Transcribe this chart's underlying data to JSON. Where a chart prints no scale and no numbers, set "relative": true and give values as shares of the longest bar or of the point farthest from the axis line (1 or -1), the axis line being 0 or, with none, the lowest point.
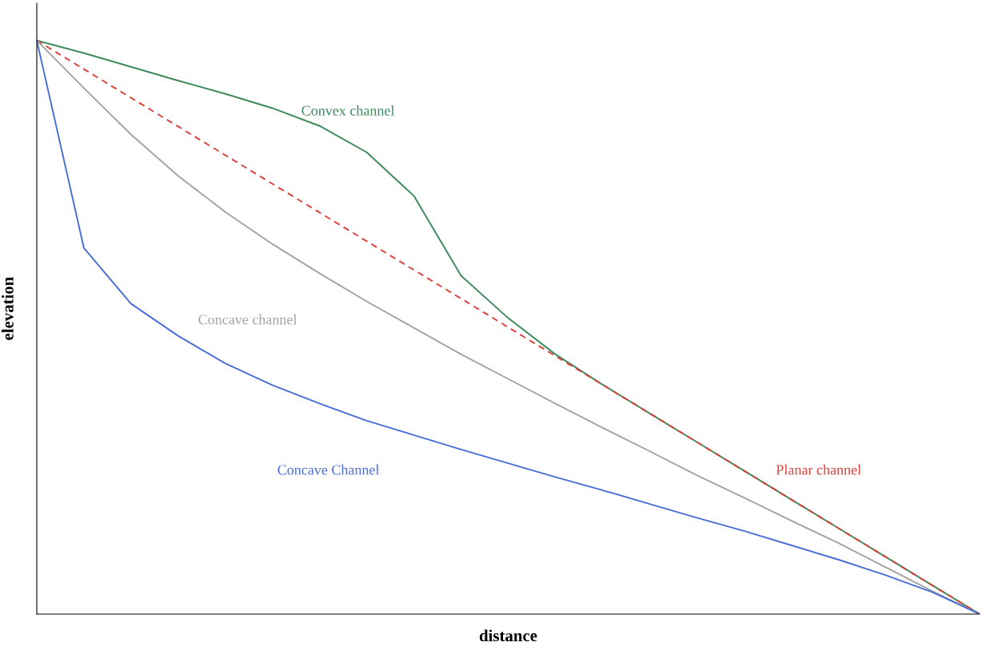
{
  "chart_data": {
    "type": "line",
    "relative": true,
    "xlabel": "distance",
    "ylabel": "elevation",
    "legend": false,
    "marker": "none",
    "categories": [
      null,
      null,
      null,
      null,
      null,
      null,
      null,
      null,
      null,
      null,
      null,
      null,
      null,
      null,
      null,
      null,
      null,
      null,
      null,
      null,
      null
    ],
    "series": [
      {
        "name": "Convex channel",
        "color": "#3f8a5c",
        "line_style": "solid",
        "values": [
          1.0,
          0.978,
          0.954,
          0.93,
          0.907,
          0.882,
          0.851,
          0.805,
          0.729,
          0.59,
          0.516,
          0.453,
          0.4,
          0.35,
          0.3,
          0.25,
          0.2,
          0.15,
          0.1,
          0.05,
          0.0
        ]
      },
      {
        "name": "Planar channel",
        "color": "#d9413a",
        "line_style": "dashed",
        "values": [
          1.0,
          0.95,
          0.9,
          0.85,
          0.8,
          0.75,
          0.7,
          0.65,
          0.6,
          0.55,
          0.5,
          0.45,
          0.4,
          0.35,
          0.3,
          0.25,
          0.2,
          0.15,
          0.1,
          0.05,
          0.0
        ]
      },
      {
        "name": "Concave channel",
        "color": "#a3a3a3",
        "line_style": "solid",
        "values": [
          1.0,
          0.917,
          0.836,
          0.764,
          0.701,
          0.645,
          0.594,
          0.545,
          0.499,
          0.453,
          0.41,
          0.367,
          0.325,
          0.284,
          0.242,
          0.203,
          0.163,
          0.124,
          0.082,
          0.04,
          0.0
        ]
      },
      {
        "name": "Concave Channel",
        "color": "#4a6ed8",
        "line_style": "solid",
        "values": [
          1.0,
          0.638,
          0.541,
          0.485,
          0.437,
          0.399,
          0.367,
          0.337,
          0.312,
          0.287,
          0.263,
          0.239,
          0.216,
          0.192,
          0.168,
          0.145,
          0.12,
          0.095,
          0.068,
          0.038,
          0.0
        ]
      }
    ]
  }
}
